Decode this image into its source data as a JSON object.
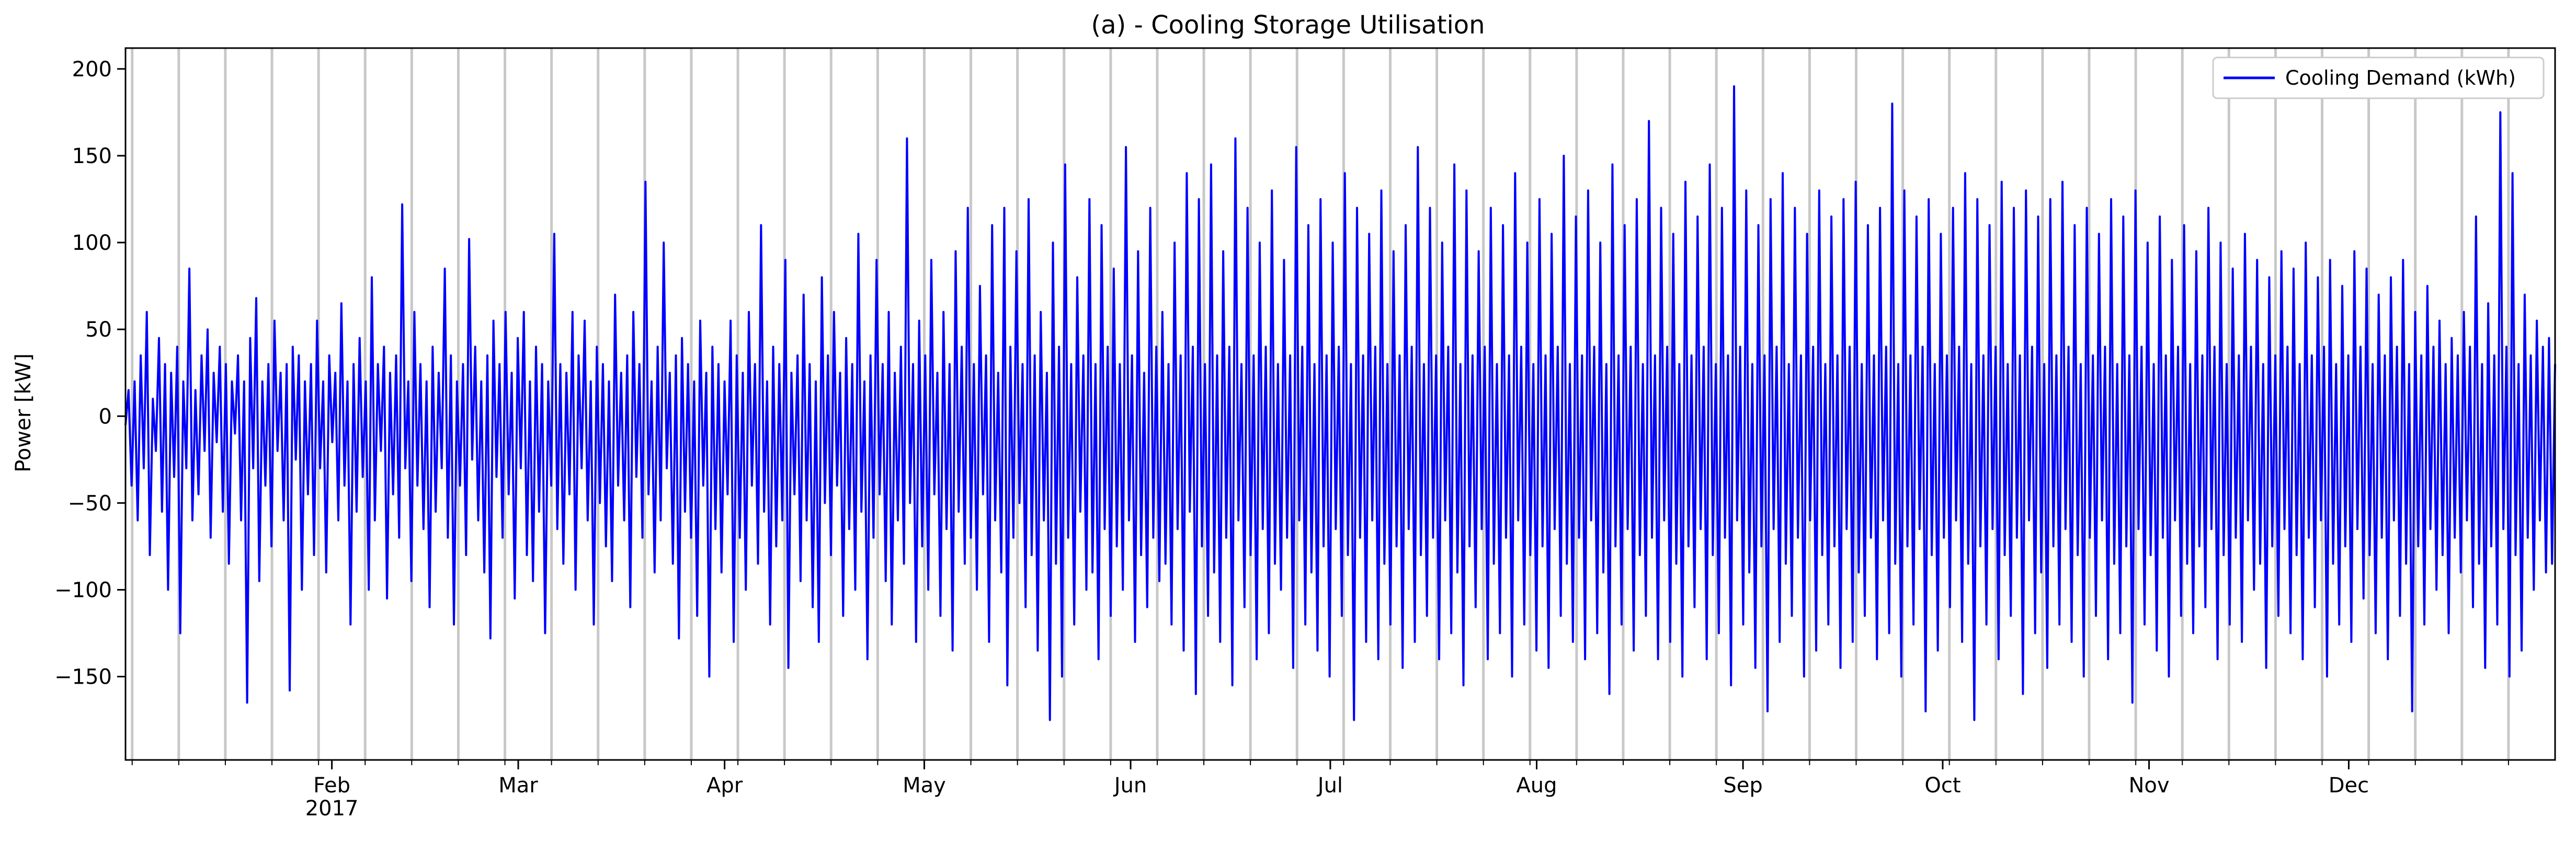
{
  "chart_data": {
    "type": "line",
    "title": "(a) - Cooling Storage Utilisation",
    "xlabel": "",
    "ylabel": "Power [kW]",
    "x_range": [
      "2017-01-01",
      "2017-12-31"
    ],
    "ylim": [
      -198,
      212
    ],
    "y_ticks": [
      -150,
      -100,
      -50,
      0,
      50,
      100,
      150,
      200
    ],
    "x_ticks": [
      {
        "date": "2017-02-01",
        "label": "Feb",
        "sublabel": "2017"
      },
      {
        "date": "2017-03-01",
        "label": "Mar",
        "sublabel": ""
      },
      {
        "date": "2017-04-01",
        "label": "Apr",
        "sublabel": ""
      },
      {
        "date": "2017-05-01",
        "label": "May",
        "sublabel": ""
      },
      {
        "date": "2017-06-01",
        "label": "Jun",
        "sublabel": ""
      },
      {
        "date": "2017-07-01",
        "label": "Jul",
        "sublabel": ""
      },
      {
        "date": "2017-08-01",
        "label": "Aug",
        "sublabel": ""
      },
      {
        "date": "2017-09-01",
        "label": "Sep",
        "sublabel": ""
      },
      {
        "date": "2017-10-01",
        "label": "Oct",
        "sublabel": ""
      },
      {
        "date": "2017-11-01",
        "label": "Nov",
        "sublabel": ""
      },
      {
        "date": "2017-12-01",
        "label": "Dec",
        "sublabel": ""
      }
    ],
    "vertical_gridlines_dates": [
      "2017-01-02",
      "2017-01-09",
      "2017-01-16",
      "2017-01-23",
      "2017-01-30",
      "2017-02-06",
      "2017-02-13",
      "2017-02-20",
      "2017-02-27",
      "2017-03-06",
      "2017-03-13",
      "2017-03-20",
      "2017-03-27",
      "2017-04-03",
      "2017-04-10",
      "2017-04-17",
      "2017-04-24",
      "2017-05-01",
      "2017-05-08",
      "2017-05-15",
      "2017-05-22",
      "2017-05-29",
      "2017-06-05",
      "2017-06-12",
      "2017-06-19",
      "2017-06-26",
      "2017-07-03",
      "2017-07-10",
      "2017-07-17",
      "2017-07-24",
      "2017-07-31",
      "2017-08-07",
      "2017-08-14",
      "2017-08-21",
      "2017-08-28",
      "2017-09-04",
      "2017-09-11",
      "2017-09-18",
      "2017-09-25",
      "2017-10-02",
      "2017-10-09",
      "2017-10-16",
      "2017-10-23",
      "2017-10-30",
      "2017-11-06",
      "2017-11-13",
      "2017-11-20",
      "2017-11-27",
      "2017-12-04",
      "2017-12-11",
      "2017-12-18",
      "2017-12-25"
    ],
    "legend_position": "top-right",
    "grid": "vertical weekly lines",
    "series": [
      {
        "name": "Cooling Demand (kWh)",
        "color": "#0000ff",
        "values": [
          -5,
          15,
          -40,
          20,
          -60,
          35,
          -30,
          60,
          -80,
          10,
          -20,
          45,
          -55,
          30,
          -100,
          25,
          -35,
          40,
          -125,
          20,
          -30,
          85,
          -60,
          15,
          -45,
          35,
          -20,
          50,
          -70,
          25,
          -15,
          40,
          -55,
          30,
          -85,
          20,
          -10,
          35,
          -60,
          20,
          -165,
          45,
          -30,
          68,
          -95,
          20,
          -40,
          30,
          -75,
          55,
          -20,
          25,
          -60,
          30,
          -158,
          40,
          -25,
          35,
          -100,
          20,
          -45,
          30,
          -80,
          55,
          -30,
          20,
          -90,
          35,
          -15,
          25,
          -60,
          65,
          -40,
          20,
          -120,
          30,
          -55,
          45,
          -35,
          20,
          -100,
          80,
          -60,
          30,
          -20,
          40,
          -105,
          25,
          -45,
          35,
          -70,
          122,
          -30,
          20,
          -95,
          60,
          -40,
          30,
          -65,
          20,
          -110,
          40,
          -55,
          25,
          -30,
          85,
          -70,
          35,
          -120,
          20,
          -40,
          30,
          -80,
          102,
          -25,
          40,
          -60,
          20,
          -90,
          35,
          -128,
          55,
          -35,
          30,
          -70,
          60,
          -45,
          25,
          -105,
          45,
          -30,
          60,
          -80,
          20,
          -95,
          40,
          -55,
          30,
          -125,
          20,
          -40,
          105,
          -65,
          30,
          -85,
          25,
          -45,
          60,
          -100,
          35,
          -30,
          55,
          -60,
          20,
          -120,
          40,
          -50,
          30,
          -75,
          20,
          -95,
          70,
          -40,
          25,
          -60,
          35,
          -110,
          60,
          -35,
          30,
          -70,
          135,
          -45,
          20,
          -90,
          40,
          -60,
          100,
          -30,
          25,
          -85,
          35,
          -128,
          45,
          -55,
          30,
          -70,
          20,
          -115,
          55,
          -40,
          25,
          -150,
          40,
          -65,
          30,
          -90,
          20,
          -45,
          55,
          -130,
          35,
          -70,
          25,
          -100,
          60,
          -40,
          30,
          -85,
          110,
          -55,
          20,
          -120,
          40,
          -75,
          30,
          -60,
          90,
          -145,
          25,
          -45,
          35,
          -95,
          70,
          -60,
          30,
          -110,
          20,
          -130,
          80,
          -50,
          35,
          -80,
          60,
          -40,
          25,
          -115,
          45,
          -65,
          30,
          -100,
          105,
          -55,
          20,
          -140,
          35,
          -70,
          90,
          -45,
          30,
          -95,
          60,
          -120,
          25,
          -60,
          40,
          -85,
          160,
          -50,
          30,
          -130,
          55,
          -75,
          35,
          -100,
          90,
          -45,
          25,
          -115,
          60,
          -65,
          30,
          -135,
          95,
          -55,
          40,
          -85,
          120,
          -70,
          30,
          -100,
          75,
          -45,
          35,
          -130,
          110,
          -60,
          25,
          -90,
          120,
          -155,
          40,
          -70,
          95,
          -50,
          30,
          -110,
          125,
          -80,
          35,
          -135,
          60,
          -60,
          25,
          -175,
          100,
          -85,
          40,
          -150,
          145,
          -70,
          30,
          -120,
          80,
          -55,
          35,
          -100,
          125,
          -90,
          30,
          -140,
          110,
          -65,
          40,
          -115,
          85,
          -75,
          30,
          -100,
          155,
          -60,
          35,
          -130,
          95,
          -80,
          25,
          -110,
          120,
          -70,
          40,
          -95,
          60,
          -85,
          30,
          -120,
          100,
          -65,
          35,
          -135,
          140,
          -55,
          40,
          -160,
          125,
          -75,
          30,
          -115,
          145,
          -90,
          35,
          -130,
          95,
          -70,
          40,
          -155,
          160,
          -60,
          30,
          -110,
          120,
          -80,
          35,
          -140,
          100,
          -65,
          40,
          -125,
          130,
          -85,
          30,
          -100,
          90,
          -70,
          35,
          -145,
          155,
          -60,
          40,
          -120,
          110,
          -90,
          30,
          -135,
          125,
          -75,
          35,
          -150,
          100,
          -65,
          40,
          -115,
          140,
          -80,
          30,
          -175,
          120,
          -70,
          35,
          -130,
          105,
          -60,
          40,
          -140,
          130,
          -85,
          30,
          -120,
          95,
          -75,
          35,
          -145,
          110,
          -65,
          40,
          -130,
          155,
          -80,
          30,
          -115,
          120,
          -70,
          35,
          -140,
          100,
          -60,
          40,
          -125,
          145,
          -90,
          30,
          -155,
          130,
          -75,
          35,
          -110,
          95,
          -65,
          40,
          -140,
          120,
          -85,
          30,
          -125,
          110,
          -70,
          35,
          -150,
          140,
          -60,
          40,
          -120,
          100,
          -80,
          30,
          -135,
          125,
          -75,
          35,
          -145,
          105,
          -65,
          40,
          -115,
          150,
          -85,
          30,
          -130,
          115,
          -70,
          35,
          -140,
          130,
          -60,
          40,
          -125,
          100,
          -90,
          30,
          -160,
          145,
          -75,
          35,
          -120,
          110,
          -65,
          40,
          -135,
          125,
          -80,
          30,
          -115,
          170,
          -70,
          35,
          -140,
          120,
          -60,
          40,
          -130,
          105,
          -85,
          30,
          -150,
          135,
          -75,
          35,
          -110,
          115,
          -65,
          40,
          -140,
          145,
          -80,
          30,
          -125,
          120,
          -70,
          35,
          -155,
          190,
          -60,
          40,
          -120,
          130,
          -90,
          30,
          -145,
          110,
          -75,
          35,
          -170,
          125,
          -65,
          40,
          -130,
          140,
          -85,
          30,
          -115,
          120,
          -70,
          35,
          -150,
          105,
          -60,
          40,
          -135,
          130,
          -80,
          30,
          -120,
          115,
          -75,
          35,
          -145,
          125,
          -65,
          40,
          -130,
          135,
          -90,
          30,
          -115,
          110,
          -70,
          35,
          -140,
          120,
          -60,
          40,
          -125,
          180,
          -85,
          30,
          -150,
          130,
          -75,
          35,
          -120,
          115,
          -65,
          40,
          -170,
          125,
          -80,
          30,
          -135,
          105,
          -70,
          35,
          -110,
          120,
          -60,
          40,
          -130,
          140,
          -85,
          30,
          -175,
          125,
          -75,
          35,
          -120,
          110,
          -65,
          40,
          -140,
          135,
          -80,
          30,
          -115,
          120,
          -70,
          35,
          -160,
          130,
          -60,
          40,
          -125,
          115,
          -90,
          30,
          -145,
          125,
          -75,
          35,
          -120,
          135,
          -65,
          40,
          -130,
          110,
          -80,
          30,
          -150,
          120,
          -70,
          35,
          -115,
          105,
          -60,
          40,
          -140,
          125,
          -85,
          30,
          -125,
          115,
          -75,
          35,
          -165,
          130,
          -65,
          40,
          -120,
          100,
          -80,
          30,
          -135,
          115,
          -70,
          35,
          -150,
          90,
          -60,
          40,
          -115,
          110,
          -85,
          30,
          -125,
          95,
          -75,
          35,
          -110,
          120,
          -65,
          40,
          -140,
          100,
          -80,
          30,
          -120,
          85,
          -70,
          35,
          -130,
          105,
          -60,
          40,
          -100,
          90,
          -85,
          30,
          -145,
          80,
          -75,
          35,
          -115,
          95,
          -65,
          40,
          -125,
          85,
          -80,
          30,
          -140,
          100,
          -70,
          35,
          -110,
          80,
          -60,
          40,
          -150,
          90,
          -85,
          30,
          -120,
          75,
          -75,
          35,
          -130,
          95,
          -65,
          40,
          -105,
          85,
          -80,
          30,
          -125,
          70,
          -70,
          35,
          -140,
          80,
          -60,
          40,
          -115,
          90,
          -85,
          30,
          -170,
          60,
          -75,
          35,
          -120,
          75,
          -65,
          40,
          -100,
          55,
          -80,
          30,
          -125,
          45,
          -70,
          35,
          -90,
          60,
          -60,
          40,
          -110,
          115,
          -85,
          30,
          -145,
          65,
          -75,
          35,
          -120,
          175,
          -65,
          40,
          -150,
          140,
          -80,
          30,
          -135,
          70,
          -70,
          35,
          -100,
          55,
          -60,
          40,
          -90,
          45,
          -85,
          30
        ]
      }
    ]
  }
}
